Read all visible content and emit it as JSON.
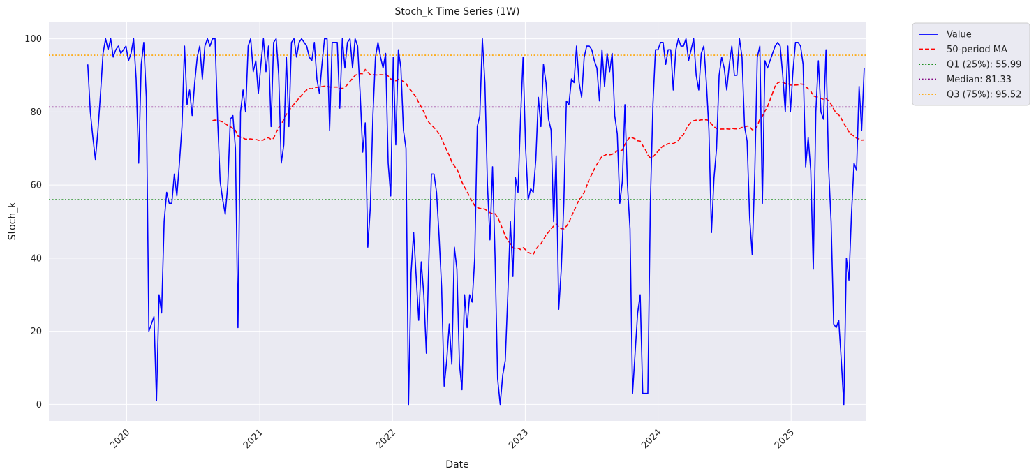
{
  "chart_data": {
    "type": "line",
    "title": "Stoch_k Time Series (1W)",
    "xlabel": "Date",
    "ylabel": "Stoch_k",
    "grid": true,
    "legend_position": "outside top-right",
    "xlim": [
      "2019-06-01",
      "2025-07-25"
    ],
    "ylim": [
      -4.5,
      104.5
    ],
    "y_ticks": [
      0,
      20,
      40,
      60,
      80,
      100
    ],
    "x_ticks": [
      "2020-01-01",
      "2021-01-01",
      "2022-01-01",
      "2023-01-01",
      "2024-01-01",
      "2025-01-01"
    ],
    "x_tick_labels": [
      "2020",
      "2021",
      "2022",
      "2023",
      "2024",
      "2025"
    ],
    "colors": {
      "plot_bg": "#EAEAF2",
      "grid": "#FFFFFF",
      "value": "#0000FF",
      "ma": "#FF0000",
      "q1": "#008000",
      "median": "#800080",
      "q3": "#FFA500"
    },
    "reference_lines": [
      {
        "name": "Q1 (25%): 55.99",
        "y": 55.99,
        "color": "#008000"
      },
      {
        "name": "Median: 81.33",
        "y": 81.33,
        "color": "#800080"
      },
      {
        "name": "Q3 (75%): 95.52",
        "y": 95.52,
        "color": "#FFA500"
      }
    ],
    "series": [
      {
        "name": "Value",
        "color": "#0000FF",
        "style": "solid",
        "x_start": "2019-09-16",
        "interval_days": 7,
        "values": [
          93,
          80,
          73,
          67,
          75,
          85,
          96,
          100,
          97,
          100,
          95,
          97,
          98,
          96,
          97,
          98,
          94,
          96,
          100,
          89,
          66,
          93,
          99,
          84,
          20,
          22,
          24,
          1,
          30,
          25,
          50,
          58,
          55,
          55,
          63,
          57,
          66,
          76,
          98,
          82,
          86,
          79,
          88,
          95,
          98,
          89,
          98,
          100,
          98,
          100,
          100,
          78,
          61,
          56,
          52,
          60,
          78,
          79,
          70,
          21,
          80,
          86,
          80,
          98,
          100,
          91,
          94,
          85,
          93,
          100,
          91,
          98,
          76,
          99,
          100,
          90,
          66,
          71,
          95,
          76,
          99,
          100,
          95,
          99,
          100,
          99,
          98,
          95,
          94,
          99,
          89,
          85,
          93,
          100,
          100,
          75,
          99,
          99,
          99,
          81,
          100,
          92,
          99,
          100,
          92,
          100,
          98,
          85,
          69,
          77,
          43,
          54,
          79,
          95,
          99,
          95,
          92,
          96,
          66,
          57,
          95,
          71,
          97,
          92,
          75,
          70,
          0,
          36,
          47,
          35,
          23,
          39,
          30,
          14,
          40,
          63,
          63,
          58,
          46,
          32,
          5,
          12,
          22,
          11,
          43,
          37,
          11,
          4,
          30,
          21,
          30,
          28,
          40,
          76,
          79,
          100,
          88,
          60,
          45,
          65,
          40,
          7,
          0,
          8,
          12,
          30,
          50,
          35,
          62,
          58,
          78,
          95,
          70,
          56,
          59,
          58,
          67,
          84,
          76,
          93,
          88,
          78,
          75,
          50,
          68,
          26,
          37,
          55,
          83,
          82,
          89,
          88,
          98,
          88,
          84,
          95,
          98,
          98,
          97,
          94,
          92,
          83,
          97,
          87,
          96,
          91,
          96,
          79,
          74,
          55,
          61,
          82,
          60,
          48,
          3,
          14,
          25,
          30,
          3,
          3,
          3,
          55,
          82,
          97,
          97,
          99,
          99,
          93,
          97,
          97,
          86,
          97,
          100,
          98,
          98,
          100,
          94,
          97,
          100,
          90,
          86,
          96,
          98,
          88,
          75,
          47,
          62,
          70,
          90,
          95,
          92,
          86,
          93,
          98,
          90,
          90,
          100,
          95,
          76,
          72,
          51,
          41,
          63,
          95,
          98,
          55,
          94,
          92,
          94,
          96,
          98,
          99,
          98,
          90,
          80,
          98,
          80,
          91,
          99,
          99,
          98,
          93,
          65,
          73,
          64,
          37,
          80,
          94,
          80,
          78,
          97,
          65,
          50,
          22,
          21,
          23,
          12,
          0,
          40,
          34,
          52,
          66,
          64,
          87,
          75,
          92
        ],
        "ma_window": 50
      },
      {
        "name": "50-period MA",
        "color": "#FF0000",
        "style": "dashed"
      },
      {
        "name": "Q1 (25%): 55.99",
        "color": "#008000",
        "style": "dotted"
      },
      {
        "name": "Median: 81.33",
        "color": "#800080",
        "style": "dotted"
      },
      {
        "name": "Q3 (75%): 95.52",
        "color": "#FFA500",
        "style": "dotted"
      }
    ]
  }
}
